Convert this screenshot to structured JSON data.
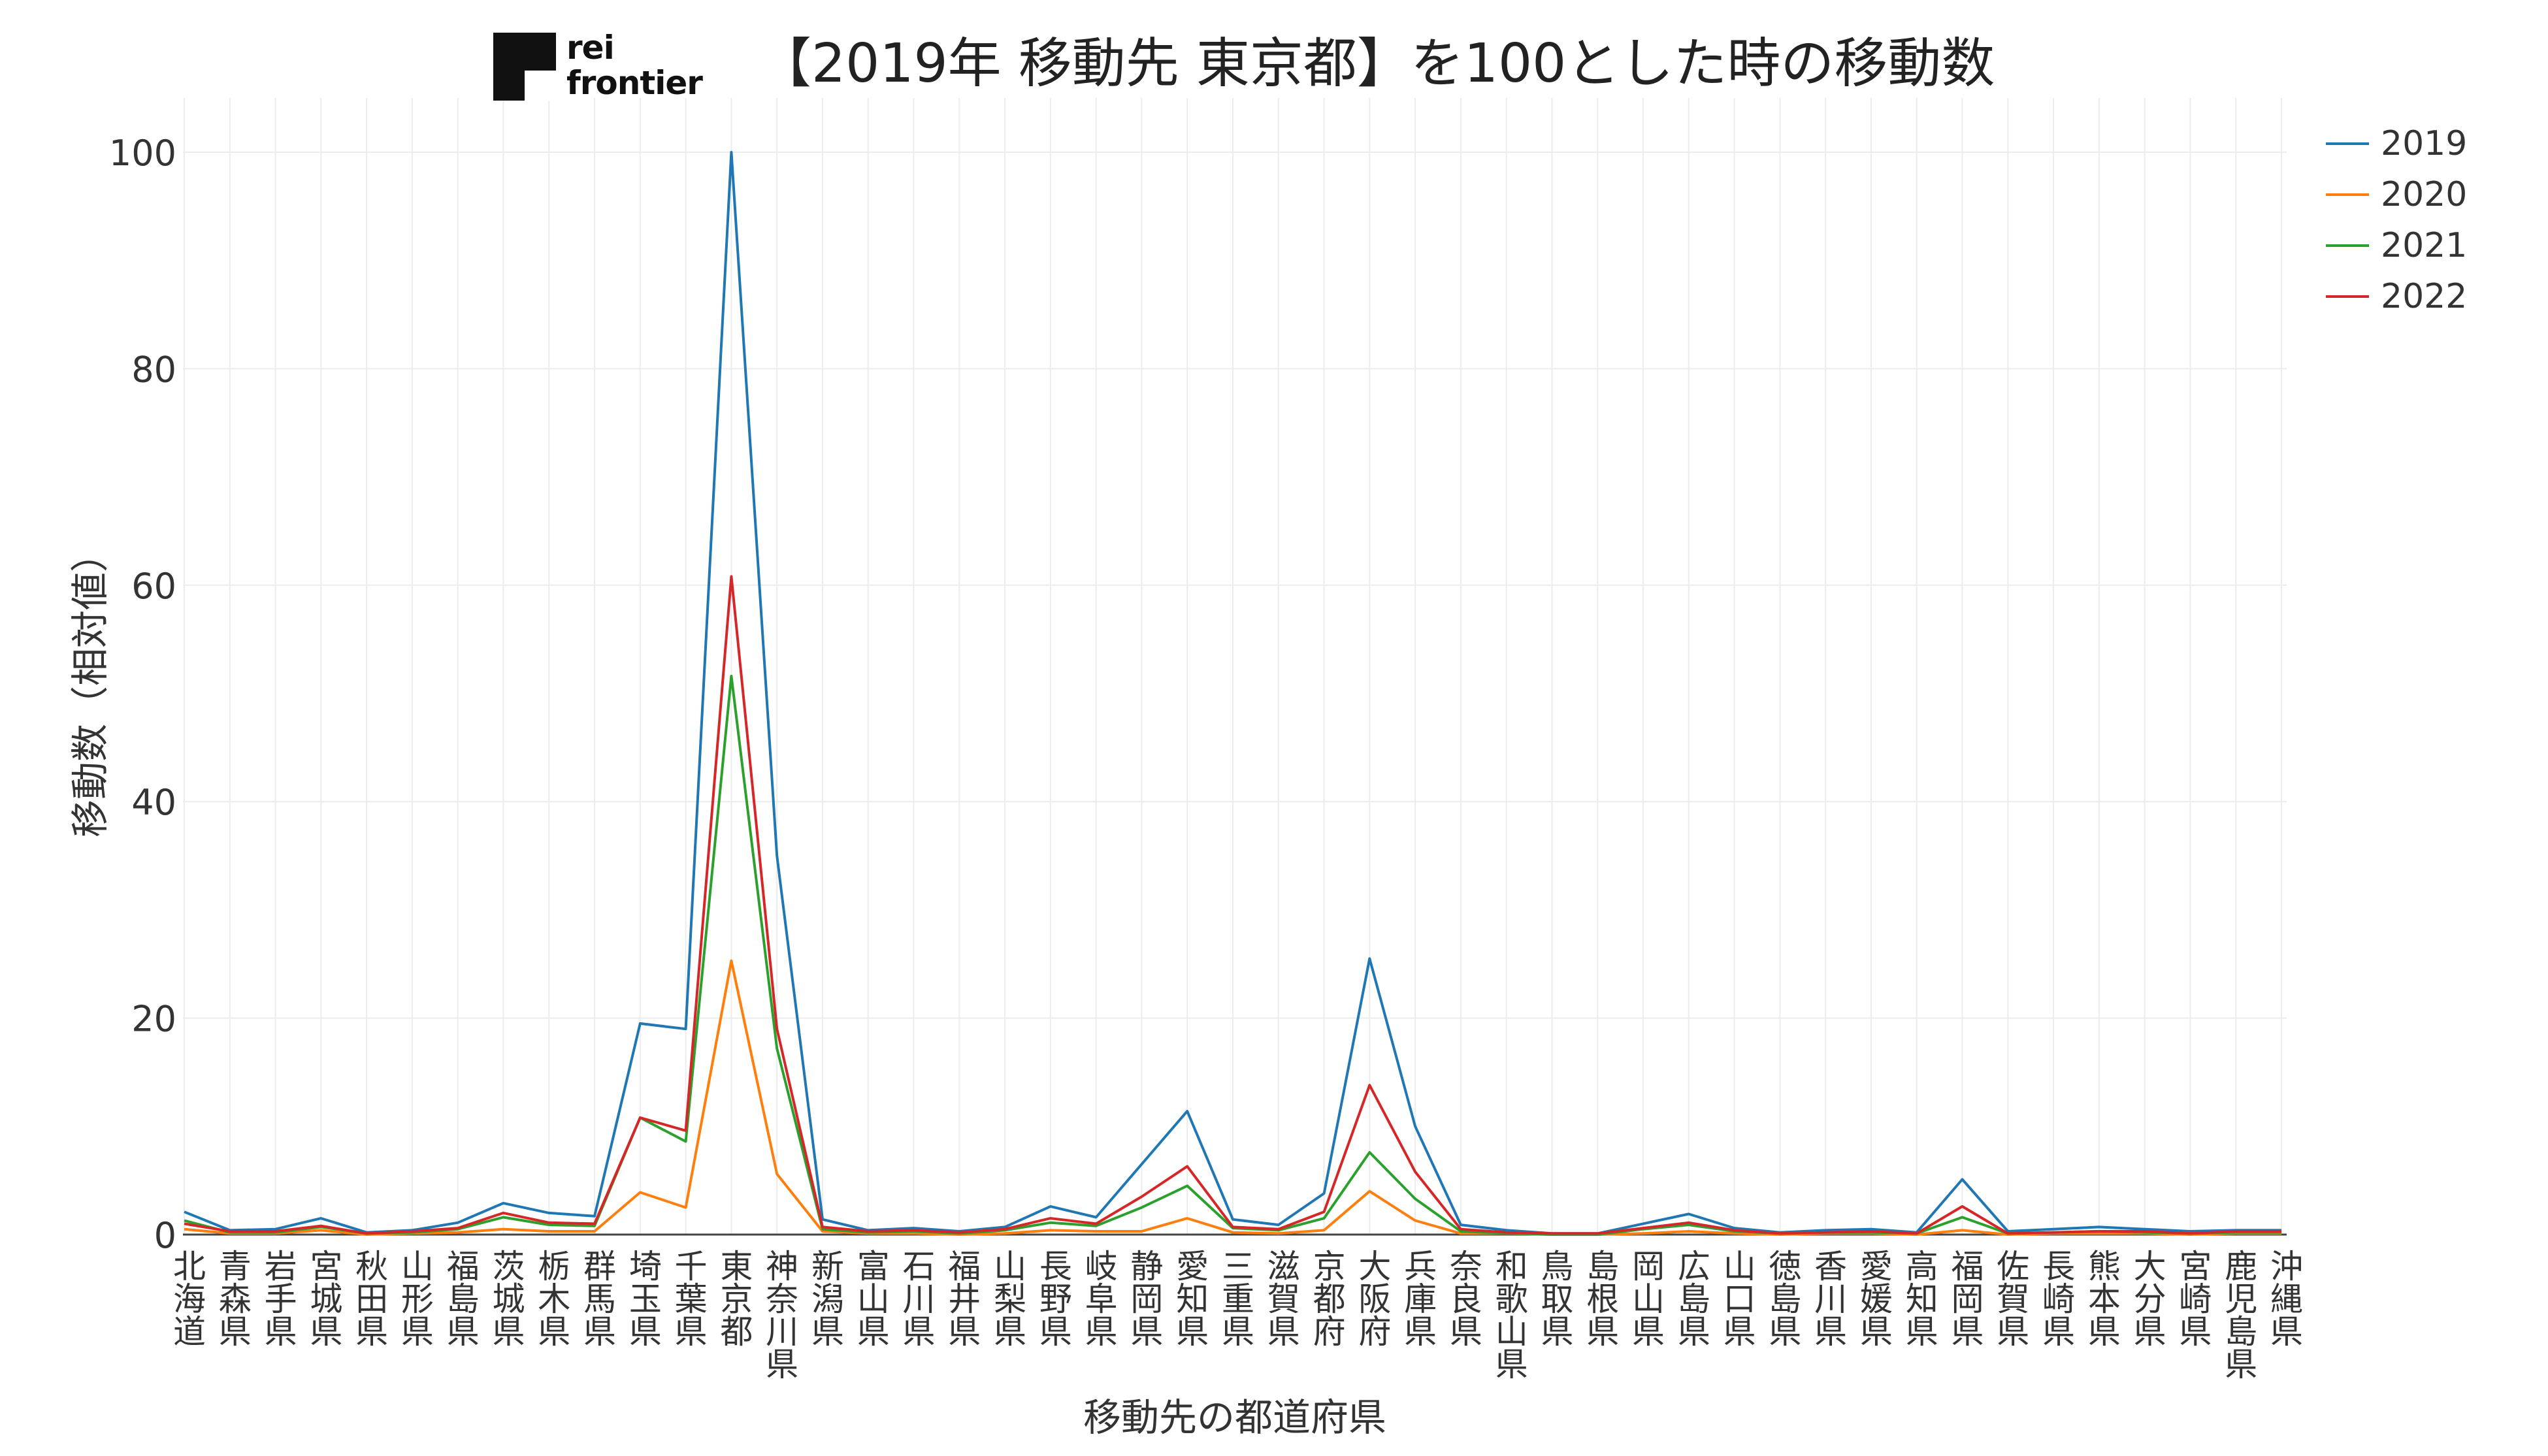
{
  "logo": {
    "line1": "rei",
    "line2": "frontier"
  },
  "chart_data": {
    "type": "line",
    "title": "【2019年 移動先 東京都】を100とした時の移動数",
    "xlabel": "移動先の都道府県",
    "ylabel": "移動数（相対値）",
    "ylim": [
      0,
      100
    ],
    "yticks": [
      0,
      20,
      40,
      60,
      80,
      100
    ],
    "grid": true,
    "legend_position": "top-right",
    "categories": [
      "北海道",
      "青森県",
      "岩手県",
      "宮城県",
      "秋田県",
      "山形県",
      "福島県",
      "茨城県",
      "栃木県",
      "群馬県",
      "埼玉県",
      "千葉県",
      "東京都",
      "神奈川県",
      "新潟県",
      "富山県",
      "石川県",
      "福井県",
      "山梨県",
      "長野県",
      "岐阜県",
      "静岡県",
      "愛知県",
      "三重県",
      "滋賀県",
      "京都府",
      "大阪府",
      "兵庫県",
      "奈良県",
      "和歌山県",
      "鳥取県",
      "島根県",
      "岡山県",
      "広島県",
      "山口県",
      "徳島県",
      "香川県",
      "愛媛県",
      "高知県",
      "福岡県",
      "佐賀県",
      "長崎県",
      "熊本県",
      "大分県",
      "宮崎県",
      "鹿児島県",
      "沖縄県"
    ],
    "series": [
      {
        "name": "2019",
        "color": "#1f77b4",
        "values": [
          2.1,
          0.4,
          0.5,
          1.5,
          0.2,
          0.4,
          1.1,
          2.9,
          2.0,
          1.7,
          19.5,
          19.0,
          100,
          35.0,
          1.4,
          0.4,
          0.6,
          0.3,
          0.7,
          2.6,
          1.6,
          6.5,
          11.4,
          1.4,
          0.9,
          3.8,
          25.5,
          10.0,
          0.9,
          0.4,
          0.1,
          0.1,
          1.0,
          1.9,
          0.6,
          0.2,
          0.4,
          0.5,
          0.2,
          5.1,
          0.3,
          0.5,
          0.7,
          0.5,
          0.3,
          0.4,
          0.4
        ]
      },
      {
        "name": "2020",
        "color": "#ff7f0e",
        "values": [
          0.5,
          0.1,
          0.1,
          0.4,
          0.0,
          0.1,
          0.2,
          0.5,
          0.3,
          0.3,
          3.9,
          2.5,
          25.3,
          5.6,
          0.3,
          0.1,
          0.1,
          0.0,
          0.1,
          0.4,
          0.3,
          0.3,
          1.5,
          0.2,
          0.1,
          0.4,
          4.0,
          1.3,
          0.1,
          0.1,
          0.0,
          0.0,
          0.1,
          0.3,
          0.1,
          0.0,
          0.1,
          0.1,
          0.0,
          0.4,
          0.0,
          0.1,
          0.1,
          0.1,
          0.0,
          0.1,
          0.1
        ]
      },
      {
        "name": "2021",
        "color": "#2ca02c",
        "values": [
          1.3,
          0.2,
          0.2,
          0.7,
          0.1,
          0.2,
          0.5,
          1.6,
          0.9,
          0.8,
          10.8,
          8.6,
          51.6,
          17.2,
          0.5,
          0.2,
          0.3,
          0.1,
          0.4,
          1.1,
          0.8,
          2.5,
          4.5,
          0.6,
          0.4,
          1.5,
          7.6,
          3.3,
          0.3,
          0.1,
          0.0,
          0.0,
          0.5,
          0.9,
          0.3,
          0.1,
          0.2,
          0.2,
          0.1,
          1.6,
          0.1,
          0.2,
          0.3,
          0.2,
          0.1,
          0.2,
          0.2
        ]
      },
      {
        "name": "2022",
        "color": "#d62728",
        "values": [
          1.0,
          0.3,
          0.3,
          0.8,
          0.1,
          0.3,
          0.6,
          2.0,
          1.1,
          1.0,
          10.8,
          9.6,
          60.8,
          19.0,
          0.7,
          0.3,
          0.4,
          0.2,
          0.5,
          1.5,
          1.0,
          3.5,
          6.3,
          0.7,
          0.5,
          2.1,
          13.8,
          5.8,
          0.5,
          0.2,
          0.1,
          0.1,
          0.6,
          1.1,
          0.4,
          0.1,
          0.2,
          0.3,
          0.1,
          2.6,
          0.1,
          0.2,
          0.3,
          0.3,
          0.1,
          0.3,
          0.3
        ]
      }
    ]
  }
}
